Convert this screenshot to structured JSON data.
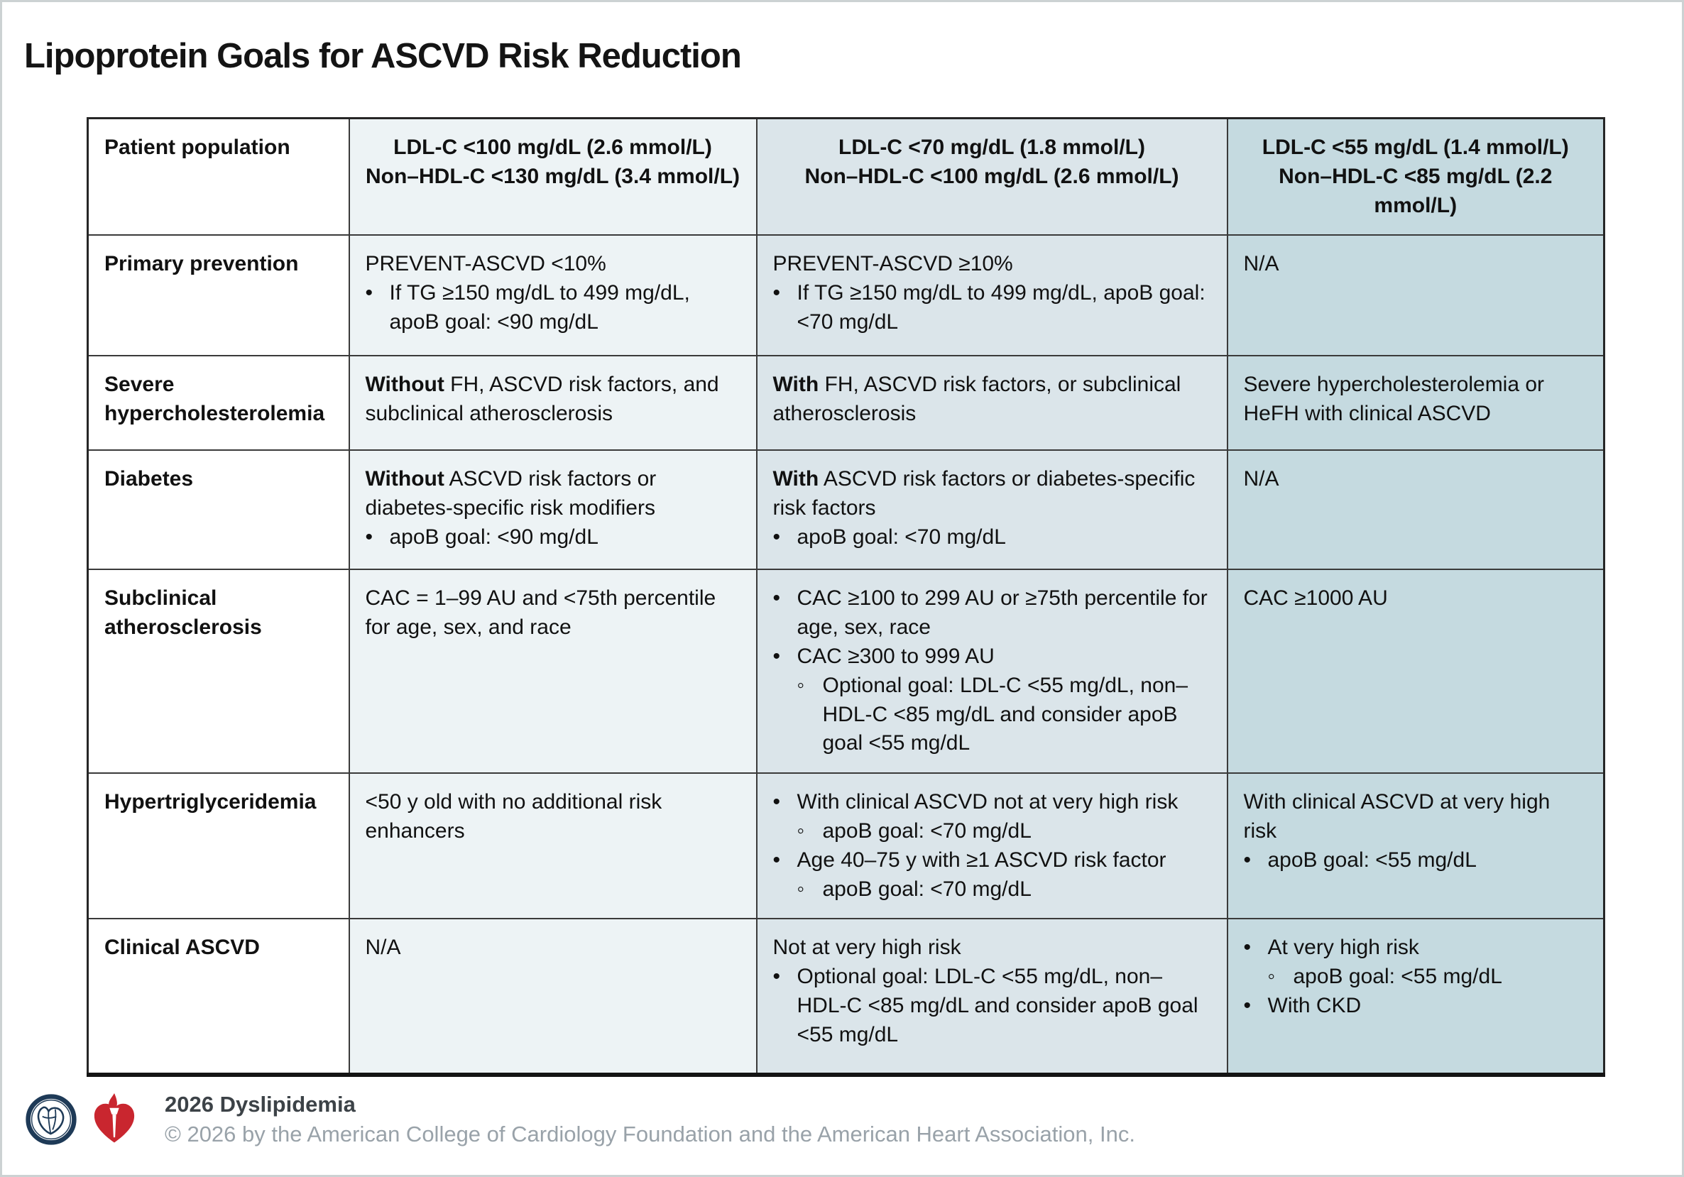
{
  "page": {
    "title": "Lipoprotein Goals for ASCVD Risk Reduction"
  },
  "colors": {
    "goal1_bg": "#edf3f5",
    "goal2_bg": "#dbe5ea",
    "goal3_bg": "#c5dae0",
    "border_dark": "#333333",
    "title_color": "#141414",
    "footer_muted": "#99a2a9",
    "footer_strong": "#3c4247",
    "acc_navy": "#1e3a57",
    "aha_red": "#c9262f"
  },
  "table": {
    "header": {
      "col1": "Patient population",
      "goal_columns": [
        {
          "line1": "LDL-C <100 mg/dL (2.6 mmol/L)",
          "line2": "Non–HDL-C <130 mg/dL (3.4 mmol/L)"
        },
        {
          "line1": "LDL-C <70 mg/dL (1.8 mmol/L)",
          "line2": "Non–HDL-C <100 mg/dL (2.6 mmol/L)"
        },
        {
          "line1": "LDL-C <55 mg/dL (1.4 mmol/L)",
          "line2": "Non–HDL-C <85 mg/dL (2.2 mmol/L)"
        }
      ]
    },
    "rows": [
      {
        "label": "Primary prevention",
        "cells": [
          [
            {
              "level": 0,
              "text": "PREVENT-ASCVD <10%"
            },
            {
              "level": 1,
              "text": "If TG ≥150 mg/dL to 499 mg/dL, apoB goal: <90 mg/dL"
            }
          ],
          [
            {
              "level": 0,
              "text": "PREVENT-ASCVD ≥10%"
            },
            {
              "level": 1,
              "text": "If TG ≥150 mg/dL to 499 mg/dL, apoB goal: <70 mg/dL"
            }
          ],
          [
            {
              "level": 0,
              "text": "N/A"
            }
          ]
        ]
      },
      {
        "label": "Severe hypercholesterolemia",
        "cells": [
          [
            {
              "level": 0,
              "bold": "Without",
              "text": " FH, ASCVD risk factors, and subclinical atherosclerosis"
            }
          ],
          [
            {
              "level": 0,
              "bold": "With",
              "text": " FH, ASCVD risk factors, or subclinical atherosclerosis"
            }
          ],
          [
            {
              "level": 0,
              "text": "Severe hypercholesterolemia or HeFH with clinical ASCVD"
            }
          ]
        ]
      },
      {
        "label": "Diabetes",
        "cells": [
          [
            {
              "level": 0,
              "bold": "Without",
              "text": " ASCVD risk factors or diabetes-specific risk modifiers"
            },
            {
              "level": 1,
              "text": "apoB goal: <90 mg/dL"
            }
          ],
          [
            {
              "level": 0,
              "bold": "With",
              "text": " ASCVD risk factors or diabetes-specific risk factors"
            },
            {
              "level": 1,
              "text": "apoB goal: <70 mg/dL"
            }
          ],
          [
            {
              "level": 0,
              "text": "N/A"
            }
          ]
        ]
      },
      {
        "label": "Subclinical atherosclerosis",
        "cells": [
          [
            {
              "level": 0,
              "text": "CAC = 1–99 AU and <75th percentile for age, sex, and race"
            }
          ],
          [
            {
              "level": 1,
              "text": "CAC ≥100 to 299 AU or ≥75th percentile for age, sex, race"
            },
            {
              "level": 1,
              "text": "CAC ≥300 to 999 AU"
            },
            {
              "level": 2,
              "text": "Optional goal: LDL-C <55 mg/dL, non–HDL-C <85 mg/dL and consider apoB goal <55 mg/dL"
            }
          ],
          [
            {
              "level": 0,
              "text": "CAC ≥1000 AU"
            }
          ]
        ]
      },
      {
        "label": "Hypertriglyceridemia",
        "cells": [
          [
            {
              "level": 0,
              "text": "<50 y old with no additional risk enhancers"
            }
          ],
          [
            {
              "level": 1,
              "text": "With clinical ASCVD not at very high risk"
            },
            {
              "level": 2,
              "text": "apoB goal: <70 mg/dL"
            },
            {
              "level": 1,
              "text": "Age 40–75 y with ≥1 ASCVD risk factor"
            },
            {
              "level": 2,
              "text": "apoB goal: <70 mg/dL"
            }
          ],
          [
            {
              "level": 0,
              "text": "With clinical ASCVD at very high risk"
            },
            {
              "level": 1,
              "text": "apoB goal: <55 mg/dL"
            }
          ]
        ]
      },
      {
        "label": "Clinical ASCVD",
        "cells": [
          [
            {
              "level": 0,
              "text": "N/A"
            }
          ],
          [
            {
              "level": 0,
              "text": "Not at very high risk"
            },
            {
              "level": 1,
              "text": "Optional goal: LDL-C <55 mg/dL, non–HDL-C <85 mg/dL and consider apoB goal <55 mg/dL"
            }
          ],
          [
            {
              "level": 1,
              "text": "At very high risk"
            },
            {
              "level": 2,
              "text": "apoB goal: <55 mg/dL"
            },
            {
              "level": 1,
              "text": "With CKD"
            }
          ]
        ]
      }
    ]
  },
  "footer": {
    "program": "2026 Dyslipidemia",
    "copyright": "© 2026 by the American College of Cardiology Foundation and the American Heart Association, Inc.",
    "icons": [
      "acc-logo",
      "aha-logo"
    ]
  }
}
